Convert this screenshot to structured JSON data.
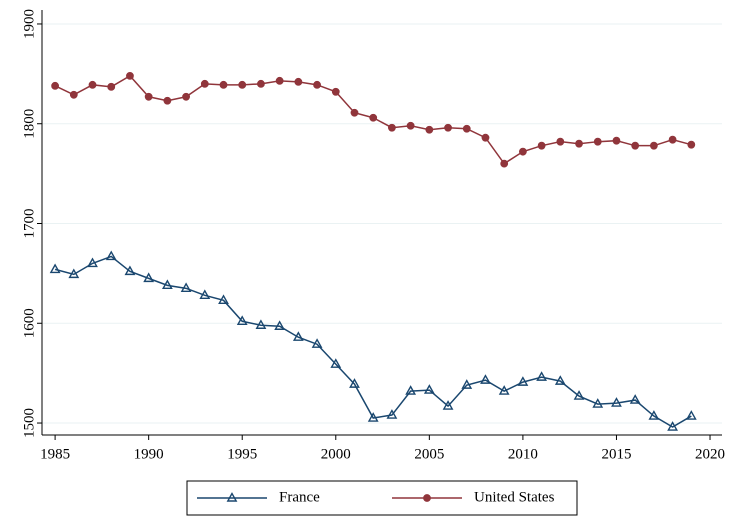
{
  "chart_data": {
    "type": "line",
    "x": [
      1985,
      1986,
      1987,
      1988,
      1989,
      1990,
      1991,
      1992,
      1993,
      1994,
      1995,
      1996,
      1997,
      1998,
      1999,
      2000,
      2001,
      2002,
      2003,
      2004,
      2005,
      2006,
      2007,
      2008,
      2009,
      2010,
      2011,
      2012,
      2013,
      2014,
      2015,
      2016,
      2017,
      2018,
      2019
    ],
    "series": [
      {
        "name": "France",
        "color": "#1a476f",
        "marker": "triangle",
        "values": [
          1654,
          1649,
          1660,
          1667,
          1652,
          1645,
          1638,
          1635,
          1628,
          1623,
          1602,
          1598,
          1597,
          1586,
          1579,
          1559,
          1539,
          1505,
          1508,
          1532,
          1533,
          1517,
          1538,
          1543,
          1532,
          1541,
          1546,
          1542,
          1527,
          1519,
          1520,
          1523,
          1507,
          1496,
          1507
        ]
      },
      {
        "name": "United States",
        "color": "#90353b",
        "marker": "circle",
        "values": [
          1838,
          1829,
          1839,
          1837,
          1848,
          1827,
          1823,
          1827,
          1840,
          1839,
          1839,
          1840,
          1843,
          1842,
          1839,
          1832,
          1811,
          1806,
          1796,
          1798,
          1794,
          1796,
          1795,
          1786,
          1760,
          1772,
          1778,
          1782,
          1780,
          1782,
          1783,
          1778,
          1778,
          1784,
          1779
        ]
      }
    ],
    "xlim": [
      1984.3,
      2020.64
    ],
    "xticks": [
      1985,
      1990,
      1995,
      2000,
      2005,
      2010,
      2015,
      2020
    ],
    "ylim": [
      1488,
      1914
    ],
    "yticks": [
      1500,
      1600,
      1700,
      1800,
      1900
    ],
    "grid": true,
    "legend": "bottom"
  }
}
